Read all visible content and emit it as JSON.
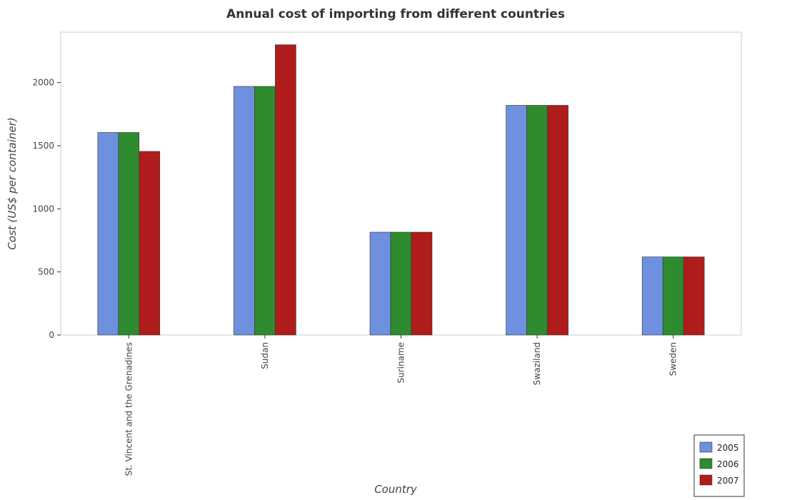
{
  "chart_data": {
    "type": "bar",
    "title": "Annual cost of importing from different countries",
    "xlabel": "Country",
    "ylabel": "Cost (US$ per container)",
    "categories": [
      "St. Vincent and the Grenadines",
      "Sudan",
      "Suriname",
      "Swaziland",
      "Sweden"
    ],
    "series": [
      {
        "name": "2005",
        "color": "#6f8fdf",
        "values": [
          1605,
          1970,
          815,
          1820,
          619
        ]
      },
      {
        "name": "2006",
        "color": "#2e8b2e",
        "values": [
          1605,
          1970,
          815,
          1820,
          619
        ]
      },
      {
        "name": "2007",
        "color": "#b01c1c",
        "values": [
          1455,
          2300,
          815,
          1820,
          619
        ]
      }
    ],
    "ylim": [
      0,
      2400
    ],
    "yticks": [
      0,
      500,
      1000,
      1500,
      2000
    ],
    "grid": false,
    "legend_position": "bottom-right"
  }
}
